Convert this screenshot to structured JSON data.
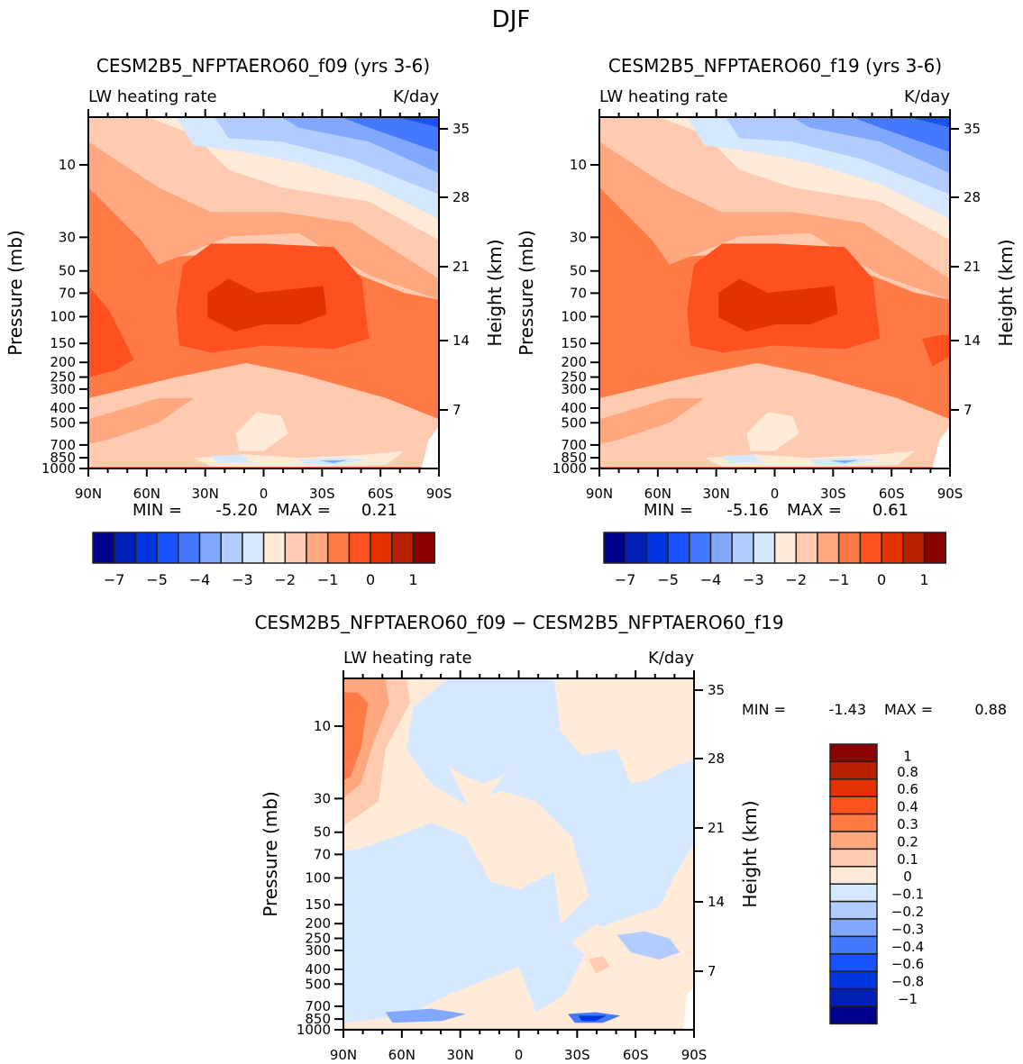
{
  "figure_title": "DJF",
  "chart_data": [
    {
      "type": "heatmap",
      "subtype": "filled-contour",
      "title": "CESM2B5_NFPTAERO60_f09 (yrs 3-6)",
      "left_string": "LW heating rate",
      "right_string": "K/day",
      "xlabel": "",
      "ylabel": "Pressure (mb)",
      "y2label": "Height (km)",
      "x_ticks": [
        "90N",
        "60N",
        "30N",
        "0",
        "30S",
        "60S",
        "90S"
      ],
      "x_values": [
        90,
        60,
        30,
        0,
        -30,
        -60,
        -90
      ],
      "y_ticks": [
        10,
        30,
        50,
        70,
        100,
        150,
        200,
        250,
        300,
        400,
        500,
        700,
        850,
        1000
      ],
      "y_range_mb": [
        1000,
        4.85
      ],
      "y2_ticks": [
        35,
        28,
        21,
        14,
        7
      ],
      "stats": {
        "min_label": "MIN =",
        "min": "-5.20",
        "max_label": "MAX =",
        "max": "0.21"
      },
      "colorbar": {
        "orientation": "horizontal",
        "levels": [
          -7,
          -5,
          -4,
          -3,
          -2,
          -1,
          0,
          1
        ],
        "level_labels": [
          "−7",
          "−5",
          "−4",
          "−3",
          "−2",
          "−1",
          "0",
          "1"
        ]
      },
      "features": [
        "stratospheric cooling strongest (-5 to -4 K/day) at top right (high southern latitudes, ~5 mb)",
        "heating-rate minimum region (~ -1 to 0 K/day bins) centered near equator 70-150 mb",
        "near-surface values between -3 and -2 K/day with small -3 to -4 patches near 850-1000 mb"
      ]
    },
    {
      "type": "heatmap",
      "subtype": "filled-contour",
      "title": "CESM2B5_NFPTAERO60_f19 (yrs 3-6)",
      "left_string": "LW heating rate",
      "right_string": "K/day",
      "xlabel": "",
      "ylabel": "Pressure (mb)",
      "y2label": "Height (km)",
      "x_ticks": [
        "90N",
        "60N",
        "30N",
        "0",
        "30S",
        "60S",
        "90S"
      ],
      "x_values": [
        90,
        60,
        30,
        0,
        -30,
        -60,
        -90
      ],
      "y_ticks": [
        10,
        30,
        50,
        70,
        100,
        150,
        200,
        250,
        300,
        400,
        500,
        700,
        850,
        1000
      ],
      "y_range_mb": [
        1000,
        4.85
      ],
      "y2_ticks": [
        35,
        28,
        21,
        14,
        7
      ],
      "stats": {
        "min_label": "MIN =",
        "min": "-5.16",
        "max_label": "MAX =",
        "max": "0.61"
      },
      "colorbar": {
        "orientation": "horizontal",
        "levels": [
          -7,
          -5,
          -4,
          -3,
          -2,
          -1,
          0,
          1
        ],
        "level_labels": [
          "−7",
          "−5",
          "−4",
          "−3",
          "−2",
          "−1",
          "0",
          "1"
        ]
      }
    },
    {
      "type": "heatmap",
      "subtype": "filled-contour",
      "title": "CESM2B5_NFPTAERO60_f09 − CESM2B5_NFPTAERO60_f19",
      "left_string": "LW heating rate",
      "right_string": "K/day",
      "xlabel": "",
      "ylabel": "Pressure (mb)",
      "y2label": "Height (km)",
      "x_ticks": [
        "90N",
        "60N",
        "30N",
        "0",
        "30S",
        "60S",
        "90S"
      ],
      "x_values": [
        90,
        60,
        30,
        0,
        -30,
        -60,
        -90
      ],
      "y_ticks": [
        10,
        30,
        50,
        70,
        100,
        150,
        200,
        250,
        300,
        400,
        500,
        700,
        850,
        1000
      ],
      "y_range_mb": [
        1000,
        4.85
      ],
      "y2_ticks": [
        35,
        28,
        21,
        14,
        7
      ],
      "stats": {
        "min_label": "MIN =",
        "min": "-1.43",
        "max_label": "MAX =",
        "max": "0.88"
      },
      "colorbar": {
        "orientation": "vertical",
        "levels": [
          1,
          0.8,
          0.6,
          0.4,
          0.3,
          0.2,
          0.1,
          0,
          -0.1,
          -0.2,
          -0.3,
          -0.4,
          -0.6,
          -0.8,
          -1
        ],
        "level_labels": [
          "1",
          "0.8",
          "0.6",
          "0.4",
          "0.3",
          "0.2",
          "0.1",
          "0",
          "−0.1",
          "−0.2",
          "−0.3",
          "−0.4",
          "−0.6",
          "−0.8",
          "−1"
        ]
      },
      "features": [
        "positive difference 0.3-0.4 K/day at 90N above 30 mb",
        "mostly weak differences (-0.1 to 0.1) elsewhere",
        "strongest negative difference (< -0.8) near 850-1000 mb around 40S"
      ]
    }
  ],
  "colormap": [
    "#00008b",
    "#0020b8",
    "#0036e0",
    "#1a52ff",
    "#4378ff",
    "#80a8ff",
    "#b3ccff",
    "#d6e8ff",
    "#ffebd8",
    "#ffcbb0",
    "#ffa880",
    "#ff7a45",
    "#ff5020",
    "#e33200",
    "#b82200",
    "#8b0000"
  ]
}
